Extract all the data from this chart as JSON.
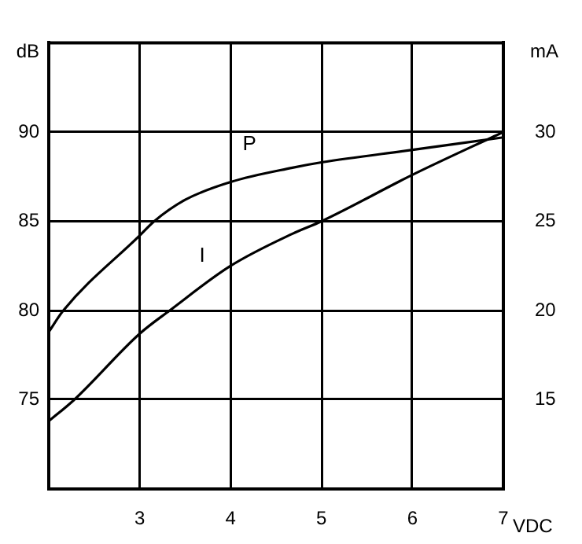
{
  "chart_data": {
    "type": "line",
    "xlabel": "VDC",
    "ylabel": "dB",
    "y2label": "mA",
    "x": [
      2,
      2.16,
      3,
      3.16,
      3.5,
      4,
      4.68,
      5,
      6,
      7
    ],
    "series": [
      {
        "name": "P",
        "color": "#000000",
        "values": [
          78.8,
          80,
          84.2,
          85,
          86.2,
          87.2,
          88.0,
          88.3,
          89.0,
          89.7
        ]
      },
      {
        "name": "I",
        "color": "#000000",
        "axis": "y2",
        "x": [
          2,
          2.28,
          3,
          3.33,
          4,
          4.68,
          5,
          6,
          7
        ],
        "values": [
          13.8,
          15,
          18.7,
          20,
          22.5,
          24.3,
          25,
          27.6,
          30
        ]
      }
    ],
    "xlim": [
      2,
      7
    ],
    "xticks": [
      3,
      4,
      5,
      6,
      7
    ],
    "ylim": [
      70,
      95
    ],
    "yticks": [
      75,
      80,
      85,
      90
    ],
    "y2lim": [
      10,
      35
    ],
    "y2ticks": [
      15,
      20,
      25,
      30
    ],
    "grid": true,
    "legend": false,
    "marker": "none",
    "line_style": "solid"
  }
}
